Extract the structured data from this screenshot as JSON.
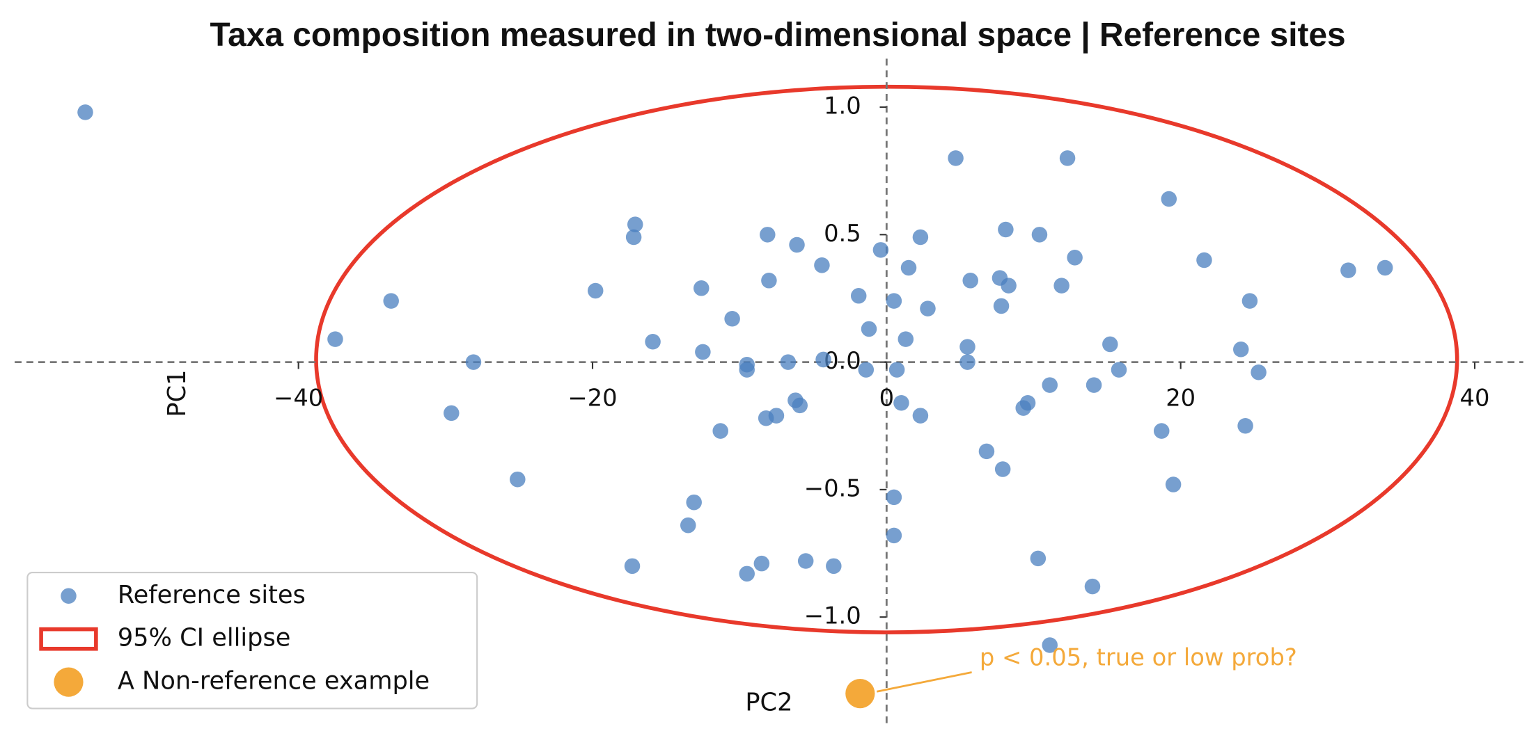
{
  "chart_data": {
    "type": "scatter",
    "title": "Taxa composition measured in two-dimensional space | Reference sites",
    "xlabel": "PC1",
    "ylabel": "PC2",
    "xlim": [
      -59.3,
      43.3
    ],
    "ylim": [
      -1.42,
      1.19
    ],
    "xticks": [
      {
        "value": -40,
        "label": "−40"
      },
      {
        "value": -20,
        "label": "−20"
      },
      0,
      20,
      40
    ],
    "yticks": [
      {
        "value": -1.0,
        "label": "−1.0"
      },
      {
        "value": -0.5,
        "label": "−0.5"
      },
      {
        "value": 0.0,
        "label": "0.0"
      },
      {
        "value": 0.5,
        "label": "0.5"
      },
      {
        "value": 1.0,
        "label": "1.0"
      }
    ],
    "legend": "lower left",
    "series": [
      {
        "name": "Reference sites",
        "color": "#4a7fbf",
        "x": [
          -54.5,
          4.7,
          12.3,
          19.2,
          -17.1,
          -17.2,
          -8.1,
          -6.1,
          2.3,
          8.1,
          10.4,
          -0.4,
          -4.4,
          1.5,
          12.8,
          21.6,
          31.4,
          33.9,
          -19.8,
          -12.6,
          -8.0,
          -1.9,
          0.5,
          5.7,
          7.7,
          8.3,
          11.9,
          24.7,
          -33.7,
          7.8,
          2.8,
          -10.5,
          -1.2,
          -37.5,
          -15.9,
          1.3,
          -12.5,
          5.5,
          15.2,
          24.1,
          -28.1,
          -9.5,
          -9.5,
          -6.7,
          -4.3,
          -1.4,
          0.7,
          5.5,
          15.8,
          25.3,
          11.1,
          14.1,
          -29.6,
          -6.2,
          -5.9,
          -7.5,
          -8.2,
          1.0,
          2.3,
          9.6,
          9.3,
          -11.3,
          18.7,
          24.4,
          6.8,
          7.9,
          -25.1,
          19.5,
          0.5,
          -13.1,
          -13.5,
          0.5,
          10.3,
          -17.3,
          -8.5,
          -5.5,
          -3.6,
          -9.5,
          14.0,
          11.1
        ],
        "y": [
          0.98,
          0.8,
          0.8,
          0.64,
          0.54,
          0.49,
          0.5,
          0.46,
          0.49,
          0.52,
          0.5,
          0.44,
          0.38,
          0.37,
          0.41,
          0.4,
          0.36,
          0.37,
          0.28,
          0.29,
          0.32,
          0.26,
          0.24,
          0.32,
          0.33,
          0.3,
          0.3,
          0.24,
          0.24,
          0.22,
          0.21,
          0.17,
          0.13,
          0.09,
          0.08,
          0.09,
          0.04,
          0.06,
          0.07,
          0.05,
          0.0,
          -0.01,
          -0.03,
          0.0,
          0.01,
          -0.03,
          -0.03,
          0.0,
          -0.03,
          -0.04,
          -0.09,
          -0.09,
          -0.2,
          -0.15,
          -0.17,
          -0.21,
          -0.22,
          -0.16,
          -0.21,
          -0.16,
          -0.18,
          -0.27,
          -0.27,
          -0.25,
          -0.35,
          -0.42,
          -0.46,
          -0.48,
          -0.53,
          -0.55,
          -0.64,
          -0.68,
          -0.77,
          -0.8,
          -0.79,
          -0.78,
          -0.8,
          -0.83,
          -0.88,
          -1.11
        ]
      },
      {
        "name": "A Non-reference example",
        "color": "#f4a93a",
        "x": [
          -1.8
        ],
        "y": [
          -1.3
        ]
      }
    ],
    "ellipse": {
      "name": "95% CI ellipse",
      "color": "#e8392b",
      "center": [
        0,
        0.01
      ],
      "width": 77.6,
      "height": 2.14
    },
    "annotation": {
      "text": "p < 0.05, true or low prob?",
      "color": "#f4a93a"
    }
  }
}
